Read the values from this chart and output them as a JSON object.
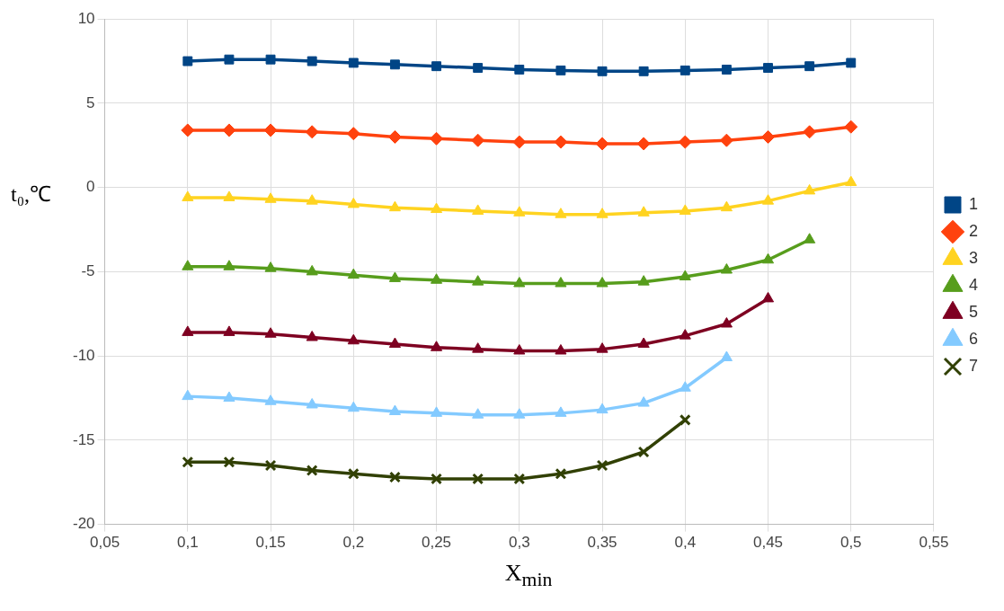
{
  "chart_data": {
    "type": "line",
    "xlabel": "X$_{min}$",
    "ylabel": "t₀,℃",
    "xlim": [
      0.05,
      0.55
    ],
    "xticks": [
      {
        "value": 0.05,
        "label": "0,05"
      },
      {
        "value": 0.1,
        "label": "0,1"
      },
      {
        "value": 0.15,
        "label": "0,15"
      },
      {
        "value": 0.2,
        "label": "0,2"
      },
      {
        "value": 0.25,
        "label": "0,25"
      },
      {
        "value": 0.3,
        "label": "0,3"
      },
      {
        "value": 0.35,
        "label": "0,35"
      },
      {
        "value": 0.4,
        "label": "0,4"
      },
      {
        "value": 0.45,
        "label": "0,45"
      },
      {
        "value": 0.5,
        "label": "0,5"
      },
      {
        "value": 0.55,
        "label": "0,55"
      }
    ],
    "ylim": [
      -20,
      10
    ],
    "yticks": [
      -20,
      -15,
      -10,
      -5,
      0,
      5,
      10
    ],
    "x": [
      0.1,
      0.125,
      0.15,
      0.175,
      0.2,
      0.225,
      0.25,
      0.275,
      0.3,
      0.325,
      0.35,
      0.375,
      0.4,
      0.425,
      0.45,
      0.475,
      0.5
    ],
    "series": [
      {
        "name": "1",
        "color": "#004586",
        "marker": "square",
        "values": [
          7.5,
          7.6,
          7.6,
          7.5,
          7.4,
          7.3,
          7.2,
          7.1,
          7.0,
          6.95,
          6.9,
          6.9,
          6.95,
          7.0,
          7.1,
          7.2,
          7.4
        ]
      },
      {
        "name": "2",
        "color": "#ff420e",
        "marker": "diamond",
        "values": [
          3.4,
          3.4,
          3.4,
          3.3,
          3.2,
          3.0,
          2.9,
          2.8,
          2.7,
          2.7,
          2.6,
          2.6,
          2.7,
          2.8,
          3.0,
          3.3,
          3.6
        ]
      },
      {
        "name": "3",
        "color": "#ffd320",
        "marker": "triangle",
        "values": [
          -0.6,
          -0.6,
          -0.7,
          -0.8,
          -1.0,
          -1.2,
          -1.3,
          -1.4,
          -1.5,
          -1.6,
          -1.6,
          -1.5,
          -1.4,
          -1.2,
          -0.8,
          -0.2,
          0.3
        ]
      },
      {
        "name": "4",
        "color": "#579d1c",
        "marker": "triangle",
        "values": [
          -4.7,
          -4.7,
          -4.8,
          -5.0,
          -5.2,
          -5.4,
          -5.5,
          -5.6,
          -5.7,
          -5.7,
          -5.7,
          -5.6,
          -5.3,
          -4.9,
          -4.3,
          -3.1,
          null
        ]
      },
      {
        "name": "5",
        "color": "#7e0021",
        "marker": "triangle",
        "values": [
          -8.6,
          -8.6,
          -8.7,
          -8.9,
          -9.1,
          -9.3,
          -9.5,
          -9.6,
          -9.7,
          -9.7,
          -9.6,
          -9.3,
          -8.8,
          -8.1,
          -6.6,
          null,
          null
        ]
      },
      {
        "name": "6",
        "color": "#83caff",
        "marker": "triangle",
        "values": [
          -12.4,
          -12.5,
          -12.7,
          -12.9,
          -13.1,
          -13.3,
          -13.4,
          -13.5,
          -13.5,
          -13.4,
          -13.2,
          -12.8,
          -11.9,
          -10.1,
          null,
          null,
          null
        ]
      },
      {
        "name": "7",
        "color": "#314004",
        "marker": "cross",
        "values": [
          -16.3,
          -16.3,
          -16.5,
          -16.8,
          -17.0,
          -17.2,
          -17.3,
          -17.3,
          -17.3,
          -17.0,
          -16.5,
          -15.7,
          -13.8,
          null,
          null,
          null,
          null
        ]
      }
    ],
    "grid": true,
    "legend": "right",
    "line_style": "solid"
  }
}
